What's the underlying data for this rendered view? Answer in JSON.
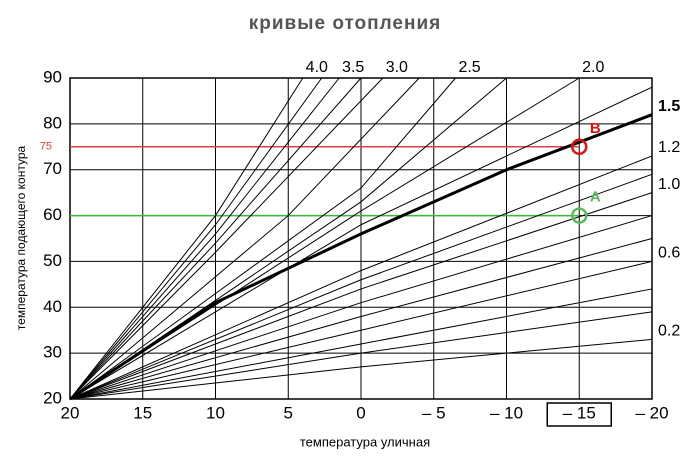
{
  "chart_data": {
    "type": "line",
    "title": "кривые отопления",
    "xlabel": "температура уличная",
    "ylabel": "температура подающего контура",
    "xlim": [
      20,
      -20
    ],
    "ylim": [
      20,
      90
    ],
    "xticks": [
      20,
      15,
      10,
      5,
      0,
      {
        "value": -5,
        "label": "– 5"
      },
      {
        "value": -10,
        "label": "– 10"
      },
      {
        "value": -15,
        "label": "– 15"
      },
      {
        "value": -20,
        "label": "– 20"
      }
    ],
    "yticks": [
      20,
      30,
      40,
      50,
      60,
      70,
      80,
      90
    ],
    "grid": true,
    "boxed_xtick": -15,
    "series": [
      {
        "name": "4.0",
        "color": "#000000",
        "x": [
          20,
          10,
          4
        ],
        "values": [
          20,
          60,
          90
        ]
      },
      {
        "color": "#000000",
        "x": [
          20,
          10,
          2.7
        ],
        "values": [
          20,
          58,
          90
        ]
      },
      {
        "name": "3.5",
        "color": "#000000",
        "x": [
          20,
          10,
          1.5
        ],
        "values": [
          20,
          56,
          90
        ]
      },
      {
        "color": "#000000",
        "x": [
          20,
          10,
          0
        ],
        "values": [
          20,
          54,
          90
        ]
      },
      {
        "name": "3.0",
        "color": "#000000",
        "x": [
          20,
          10,
          -1.5
        ],
        "values": [
          20,
          52,
          90
        ]
      },
      {
        "color": "#000000",
        "x": [
          20,
          5,
          -4
        ],
        "values": [
          20,
          60,
          90
        ]
      },
      {
        "name": "2.5",
        "color": "#000000",
        "x": [
          20,
          0,
          -6.5
        ],
        "values": [
          20,
          66,
          90
        ]
      },
      {
        "color": "#000000",
        "x": [
          20,
          0,
          -10
        ],
        "values": [
          20,
          63,
          90
        ]
      },
      {
        "name": "2.0",
        "color": "#000000",
        "x": [
          20,
          0,
          -15
        ],
        "values": [
          20,
          61,
          90
        ]
      },
      {
        "color": "#000000",
        "x": [
          20,
          0,
          -20
        ],
        "values": [
          20,
          58,
          88
        ]
      },
      {
        "name": "1.5",
        "color": "#000000",
        "width": 3,
        "x": [
          20,
          10,
          0,
          -10,
          -20
        ],
        "values": [
          20,
          41,
          56,
          70,
          82
        ]
      },
      {
        "name": "1.2",
        "color": "#000000",
        "x": [
          20,
          0,
          -20
        ],
        "values": [
          20,
          48,
          73
        ]
      },
      {
        "color": "#000000",
        "x": [
          20,
          0,
          -20
        ],
        "values": [
          20,
          46,
          69
        ]
      },
      {
        "name": "1.0",
        "color": "#000000",
        "x": [
          20,
          0,
          -20
        ],
        "values": [
          20,
          44,
          65
        ]
      },
      {
        "color": "#000000",
        "x": [
          20,
          0,
          -20
        ],
        "values": [
          20,
          41,
          60
        ]
      },
      {
        "color": "#000000",
        "x": [
          20,
          0,
          -20
        ],
        "values": [
          20,
          38,
          55
        ]
      },
      {
        "name": "0.6",
        "color": "#000000",
        "x": [
          20,
          0,
          -20
        ],
        "values": [
          20,
          35,
          50
        ]
      },
      {
        "color": "#000000",
        "x": [
          20,
          0,
          -20
        ],
        "values": [
          20,
          32,
          44
        ]
      },
      {
        "color": "#000000",
        "x": [
          20,
          0,
          -20
        ],
        "values": [
          20,
          30,
          39
        ]
      },
      {
        "name": "0.2",
        "color": "#000000",
        "x": [
          20,
          0,
          -20
        ],
        "values": [
          20,
          27,
          33
        ]
      }
    ],
    "reference_lines": [
      {
        "y": 75,
        "label": "75",
        "color": "#d94040"
      },
      {
        "y": 60,
        "color": "#3cb83c"
      }
    ],
    "points": [
      {
        "label": "B",
        "x": -15,
        "y": 75,
        "color": "#e01010"
      },
      {
        "label": "A",
        "x": -15,
        "y": 60,
        "color": "#5cb85c"
      }
    ]
  }
}
